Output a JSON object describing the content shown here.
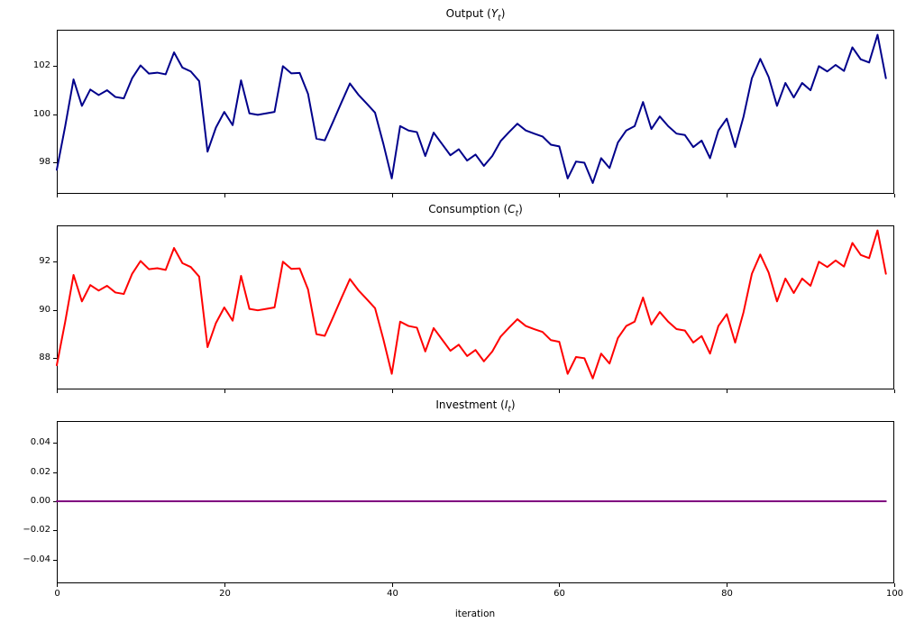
{
  "figure": {
    "background": "#ffffff",
    "axes_line_color": "#000000"
  },
  "x_axis": {
    "label": "iteration",
    "range": [
      0,
      100
    ],
    "ticks": [
      {
        "value": 0,
        "label": "0"
      },
      {
        "value": 20,
        "label": "20"
      },
      {
        "value": 40,
        "label": "40"
      },
      {
        "value": 60,
        "label": "60"
      },
      {
        "value": 80,
        "label": "80"
      },
      {
        "value": 100,
        "label": "100"
      }
    ]
  },
  "chart_data": [
    {
      "type": "line",
      "name": "output",
      "title_prefix": "Output (",
      "title_var": "Y",
      "title_sub": "t",
      "title_suffix": ")",
      "series_color": "#00008b",
      "line_width": 2,
      "grid": false,
      "legend": "none",
      "ylim": [
        96.7,
        103.51
      ],
      "yticks": [
        {
          "value": 98,
          "label": "98"
        },
        {
          "value": 100,
          "label": "100"
        },
        {
          "value": 102,
          "label": "102"
        }
      ],
      "x_start": 0,
      "x_step": 1,
      "values": [
        97.7,
        99.5,
        101.45,
        100.35,
        101.03,
        100.8,
        101.0,
        100.72,
        100.66,
        101.5,
        102.03,
        101.69,
        101.73,
        101.66,
        102.57,
        101.94,
        101.78,
        101.38,
        98.45,
        99.45,
        100.1,
        99.55,
        101.41,
        100.04,
        99.98,
        100.04,
        100.1,
        102.0,
        101.7,
        101.72,
        100.85,
        98.99,
        98.92,
        99.7,
        100.5,
        101.28,
        100.82,
        100.45,
        100.07,
        98.77,
        97.34,
        99.51,
        99.33,
        99.26,
        98.27,
        99.24,
        98.77,
        98.3,
        98.55,
        98.08,
        98.33,
        97.86,
        98.27,
        98.89,
        99.26,
        99.61,
        99.33,
        99.2,
        99.08,
        98.74,
        98.67,
        97.34,
        98.04,
        97.99,
        97.15,
        98.18,
        97.77,
        98.83,
        99.33,
        99.51,
        100.51,
        99.39,
        99.91,
        99.51,
        99.2,
        99.14,
        98.64,
        98.91,
        98.18,
        99.33,
        99.82,
        98.64,
        99.9,
        101.5,
        102.3,
        101.55,
        100.35,
        101.3,
        100.7,
        101.3,
        101.0,
        102.0,
        101.78,
        102.05,
        101.8,
        102.78,
        102.28,
        102.15,
        103.3,
        101.5
      ]
    },
    {
      "type": "line",
      "name": "consumption",
      "title_prefix": "Consumption (",
      "title_var": "C",
      "title_sub": "t",
      "title_suffix": ")",
      "series_color": "#ff0000",
      "line_width": 2,
      "grid": false,
      "legend": "none",
      "ylim": [
        86.69,
        93.51
      ],
      "yticks": [
        {
          "value": 88,
          "label": "88"
        },
        {
          "value": 90,
          "label": "90"
        },
        {
          "value": 92,
          "label": "92"
        }
      ],
      "x_start": 0,
      "x_step": 1,
      "values": [
        87.7,
        89.5,
        91.45,
        90.35,
        91.03,
        90.8,
        91.0,
        90.72,
        90.66,
        91.5,
        92.03,
        91.69,
        91.73,
        91.66,
        92.57,
        91.94,
        91.78,
        91.38,
        88.45,
        89.45,
        90.1,
        89.55,
        91.41,
        90.04,
        89.98,
        90.04,
        90.1,
        92.0,
        91.7,
        91.72,
        90.85,
        88.99,
        88.92,
        89.7,
        90.5,
        91.28,
        90.82,
        90.45,
        90.07,
        88.77,
        87.34,
        89.51,
        89.33,
        89.26,
        88.27,
        89.24,
        88.77,
        88.3,
        88.55,
        88.08,
        88.33,
        87.86,
        88.27,
        88.89,
        89.26,
        89.61,
        89.33,
        89.2,
        89.08,
        88.74,
        88.67,
        87.34,
        88.04,
        87.99,
        87.15,
        88.18,
        87.77,
        88.83,
        89.33,
        89.51,
        90.51,
        89.39,
        89.91,
        89.51,
        89.2,
        89.14,
        88.64,
        88.91,
        88.18,
        89.33,
        89.82,
        88.64,
        89.9,
        91.5,
        92.3,
        91.55,
        90.35,
        91.3,
        90.7,
        91.3,
        91.0,
        92.0,
        91.78,
        92.05,
        91.8,
        92.78,
        92.28,
        92.15,
        93.3,
        91.5
      ]
    },
    {
      "type": "line",
      "name": "investment",
      "title_prefix": "Investment (",
      "title_var": "I",
      "title_sub": "t",
      "title_suffix": ")",
      "series_color": "#800080",
      "line_width": 2,
      "grid": false,
      "legend": "none",
      "ylim": [
        -0.0562,
        0.0549
      ],
      "yticks": [
        {
          "value": 0.04,
          "label": "0.04"
        },
        {
          "value": 0.02,
          "label": "0.02"
        },
        {
          "value": 0.0,
          "label": "0.00"
        },
        {
          "value": -0.02,
          "label": "−0.02"
        },
        {
          "value": -0.04,
          "label": "−0.04"
        }
      ],
      "x_start": 0,
      "x_step": 1,
      "constant_value": 0.0,
      "n_points": 100
    }
  ]
}
